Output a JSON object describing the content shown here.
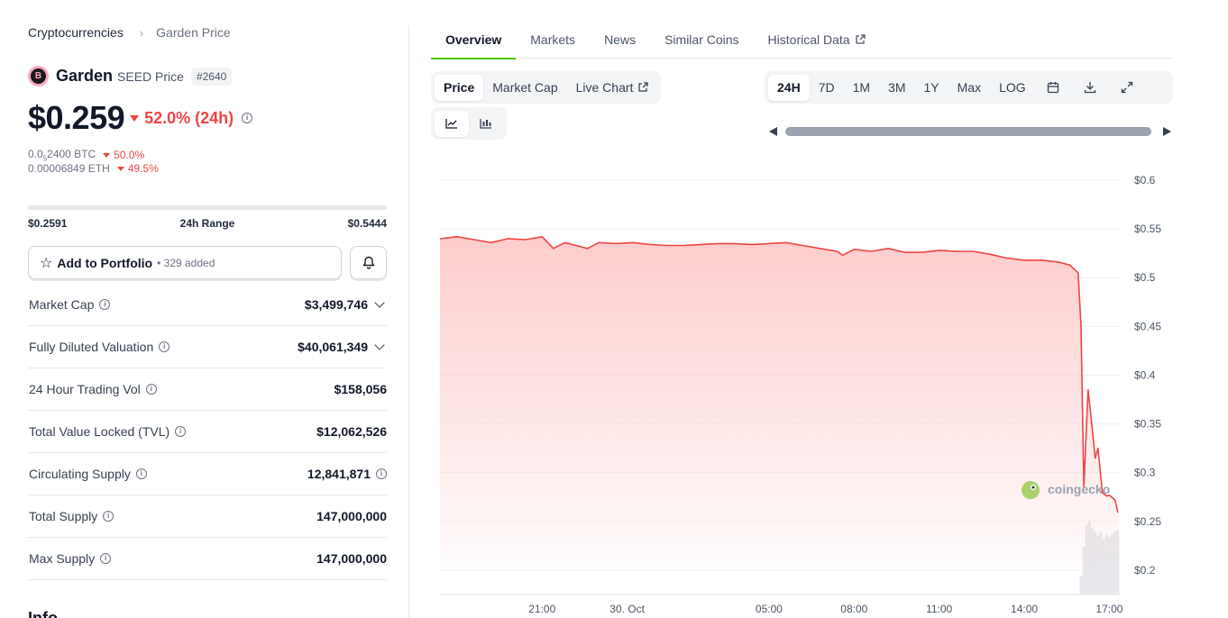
{
  "breadcrumb": {
    "parent": "Cryptocurrencies",
    "separator": "›",
    "current": "Garden Price"
  },
  "coin": {
    "logo_letter": "B",
    "name": "Garden",
    "symbol_label": "SEED Price",
    "rank": "#2640",
    "price": "$0.259",
    "change_24h": "52.0% (24h)",
    "btc_price_prefix": "0.0",
    "btc_price_sub": "5",
    "btc_price_suffix": "2400 BTC",
    "btc_change": "50.0%",
    "eth_price": "0.00006849 ETH",
    "eth_change": "49.5%",
    "change_direction": "down"
  },
  "range": {
    "low": "$0.2591",
    "label": "24h Range",
    "high": "$0.5444",
    "current_position_fraction": 0.0
  },
  "portfolio": {
    "label": "Add to Portfolio",
    "added": "• 329 added"
  },
  "stats": [
    {
      "label": "Market Cap",
      "value": "$3,499,746",
      "expandable": true
    },
    {
      "label": "Fully Diluted Valuation",
      "value": "$40,061,349",
      "expandable": true
    },
    {
      "label": "24 Hour Trading Vol",
      "value": "$158,056",
      "expandable": false
    },
    {
      "label": "Total Value Locked (TVL)",
      "value": "$12,062,526",
      "expandable": false
    },
    {
      "label": "Circulating Supply",
      "value": "12,841,871",
      "expandable": false,
      "value_info": true
    },
    {
      "label": "Total Supply",
      "value": "147,000,000",
      "expandable": false
    },
    {
      "label": "Max Supply",
      "value": "147,000,000",
      "expandable": false
    }
  ],
  "info_heading": "Info",
  "tabs": [
    "Overview",
    "Markets",
    "News",
    "Similar Coins",
    "Historical Data"
  ],
  "chart_mode": {
    "items": [
      "Price",
      "Market Cap",
      "Live Chart"
    ],
    "active": "Price"
  },
  "chart_style": {
    "items": [
      "line-chart-icon",
      "candlestick-icon"
    ],
    "active": "line-chart-icon"
  },
  "timeframes": {
    "items": [
      "24H",
      "7D",
      "1M",
      "3M",
      "1Y",
      "Max",
      "LOG"
    ],
    "active": "24H"
  },
  "tool_icons": [
    "calendar-icon",
    "download-icon",
    "fullscreen-icon"
  ],
  "watermark": "coingecko",
  "colors": {
    "accent_green": "#4bcc00",
    "negative": "#ef4444",
    "line": "#ef4444",
    "area": "#fecaca"
  },
  "chart_data": {
    "type": "area",
    "title": "",
    "xlabel": "",
    "ylabel": "",
    "ylim": [
      0.175,
      0.6
    ],
    "y_ticks": [
      "$0.6",
      "$0.55",
      "$0.5",
      "$0.45",
      "$0.4",
      "$0.35",
      "$0.3",
      "$0.25",
      "$0.2"
    ],
    "y_tick_values": [
      0.6,
      0.55,
      0.5,
      0.45,
      0.4,
      0.35,
      0.3,
      0.25,
      0.2
    ],
    "x_ticks": [
      "21:00",
      "30. Oct",
      "05:00",
      "08:00",
      "11:00",
      "14:00",
      "17:00"
    ],
    "x_tick_hours": [
      21,
      24,
      29,
      32,
      35,
      38,
      41
    ],
    "x_range_hours": [
      17.4,
      41.4
    ],
    "series": [
      {
        "name": "",
        "x": [
          17.4,
          18.0,
          18.6,
          19.2,
          19.8,
          20.4,
          21.0,
          21.4,
          21.8,
          22.2,
          22.6,
          23.0,
          23.6,
          24.2,
          24.8,
          25.4,
          26.0,
          26.6,
          27.2,
          27.8,
          28.4,
          29.0,
          29.6,
          30.2,
          30.8,
          31.4,
          31.6,
          32.0,
          32.6,
          33.2,
          33.8,
          34.4,
          35.0,
          35.6,
          36.2,
          36.8,
          37.4,
          38.0,
          38.6,
          39.2,
          39.6,
          39.9,
          40.0,
          40.1,
          40.25,
          40.4,
          40.5,
          40.6,
          40.75,
          40.9,
          41.0,
          41.2,
          41.3
        ],
        "y": [
          0.54,
          0.542,
          0.539,
          0.536,
          0.54,
          0.539,
          0.542,
          0.53,
          0.536,
          0.533,
          0.53,
          0.536,
          0.535,
          0.536,
          0.534,
          0.533,
          0.533,
          0.534,
          0.535,
          0.535,
          0.534,
          0.535,
          0.536,
          0.533,
          0.53,
          0.527,
          0.523,
          0.529,
          0.527,
          0.53,
          0.526,
          0.526,
          0.528,
          0.527,
          0.527,
          0.524,
          0.52,
          0.518,
          0.518,
          0.516,
          0.513,
          0.505,
          0.45,
          0.285,
          0.385,
          0.345,
          0.315,
          0.325,
          0.28,
          0.276,
          0.277,
          0.272,
          0.259
        ]
      }
    ],
    "volume": {
      "x": [
        40.0,
        40.1,
        40.2,
        40.3,
        40.4,
        40.5,
        40.6,
        40.7,
        40.8,
        40.9,
        41.0,
        41.1,
        41.2,
        41.3
      ],
      "relative": [
        0.25,
        0.65,
        0.95,
        1.0,
        0.9,
        0.85,
        0.8,
        0.85,
        0.75,
        0.8,
        0.78,
        0.82,
        0.85,
        0.88
      ]
    },
    "grid": true
  }
}
